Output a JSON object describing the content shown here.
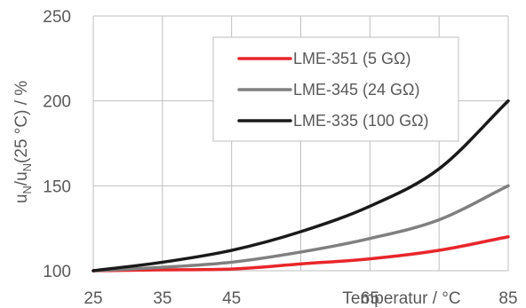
{
  "chart_data": {
    "type": "line",
    "xlabel": "Temperatur / °C",
    "ylabel_parts": [
      "u",
      "N",
      "/u",
      "N",
      "(25 °C) / %"
    ],
    "xlim": [
      25,
      85
    ],
    "ylim": [
      100,
      250
    ],
    "xticks": [
      25,
      35,
      45,
      65,
      85
    ],
    "yticks": [
      100,
      150,
      200,
      250
    ],
    "grid": true,
    "legend_position": "top-right",
    "series": [
      {
        "name": "LME-351 (5 GΩ)",
        "color": "#e8262b",
        "x": [
          25,
          35,
          45,
          55,
          65,
          75,
          85
        ],
        "y": [
          100,
          100.5,
          101,
          104,
          107,
          112,
          120
        ]
      },
      {
        "name": "LME-345 (24 GΩ)",
        "color": "#808080",
        "x": [
          25,
          35,
          45,
          55,
          65,
          75,
          85
        ],
        "y": [
          100,
          102,
          105,
          111,
          119,
          130,
          150
        ]
      },
      {
        "name": "LME-335 (100 GΩ)",
        "color": "#1a1a1a",
        "x": [
          25,
          35,
          45,
          55,
          65,
          75,
          85
        ],
        "y": [
          100,
          105,
          112,
          123,
          138,
          160,
          200
        ]
      }
    ]
  }
}
